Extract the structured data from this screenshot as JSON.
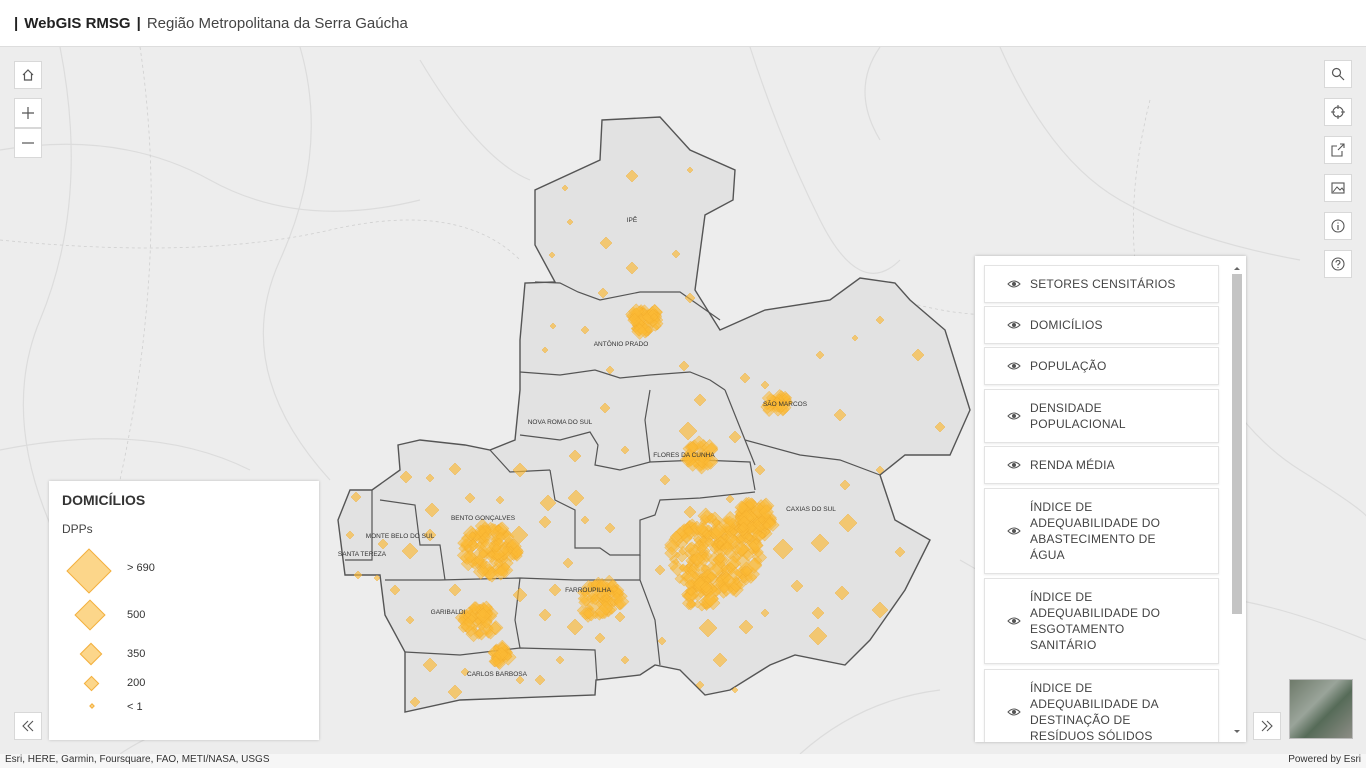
{
  "header": {
    "bar": "|",
    "app_title": "WebGIS RMSG",
    "separator": "|",
    "subtitle": "Região Metropolitana da Serra Gaúcha"
  },
  "map": {
    "cities": [
      "IPÊ",
      "ANTÔNIO PRADO",
      "SÃO MARCOS",
      "NOVA ROMA DO SUL",
      "FLORES DA CUNHA",
      "CAXIAS DO SUL",
      "BENTO GONÇALVES",
      "MONTE BELO DO SUL",
      "SANTA TEREZA",
      "FARROUPILHA",
      "GARIBALDI",
      "CARLOS BARBOSA"
    ],
    "symbol_color": "#fbb934",
    "boundary_color": "#555555"
  },
  "controls": {
    "home": "home-icon",
    "zoom_in": "plus-icon",
    "zoom_out": "minus-icon",
    "search": "search-icon",
    "locate": "crosshair-icon",
    "share": "share-icon",
    "basemap": "image-icon",
    "info": "info-icon",
    "help": "help-icon",
    "expand_left": "double-chevron-left-icon",
    "expand_right": "double-chevron-right-icon"
  },
  "legend": {
    "title": "DOMICÍLIOS",
    "field": "DPPs",
    "classes": [
      {
        "label": "> 690"
      },
      {
        "label": "500"
      },
      {
        "label": "350"
      },
      {
        "label": "200"
      },
      {
        "label": "< 1"
      }
    ]
  },
  "layer_list": [
    "SETORES CENSITÁRIOS",
    "DOMICÍLIOS",
    "POPULAÇÃO",
    "DENSIDADE POPULACIONAL",
    "RENDA MÉDIA",
    "ÍNDICE DE ADEQUABILIDADE DO ABASTECIMENTO DE ÁGUA",
    "ÍNDICE DE ADEQUABILIDADE DO ESGOTAMENTO SANITÁRIO",
    "ÍNDICE DE ADEQUABILIDADE DA DESTINAÇÃO DE RESÍDUOS SÓLIDOS"
  ],
  "attribution": {
    "left": "Esri, HERE, Garmin, Foursquare, FAO, METI/NASA, USGS",
    "right": "Powered by Esri"
  }
}
